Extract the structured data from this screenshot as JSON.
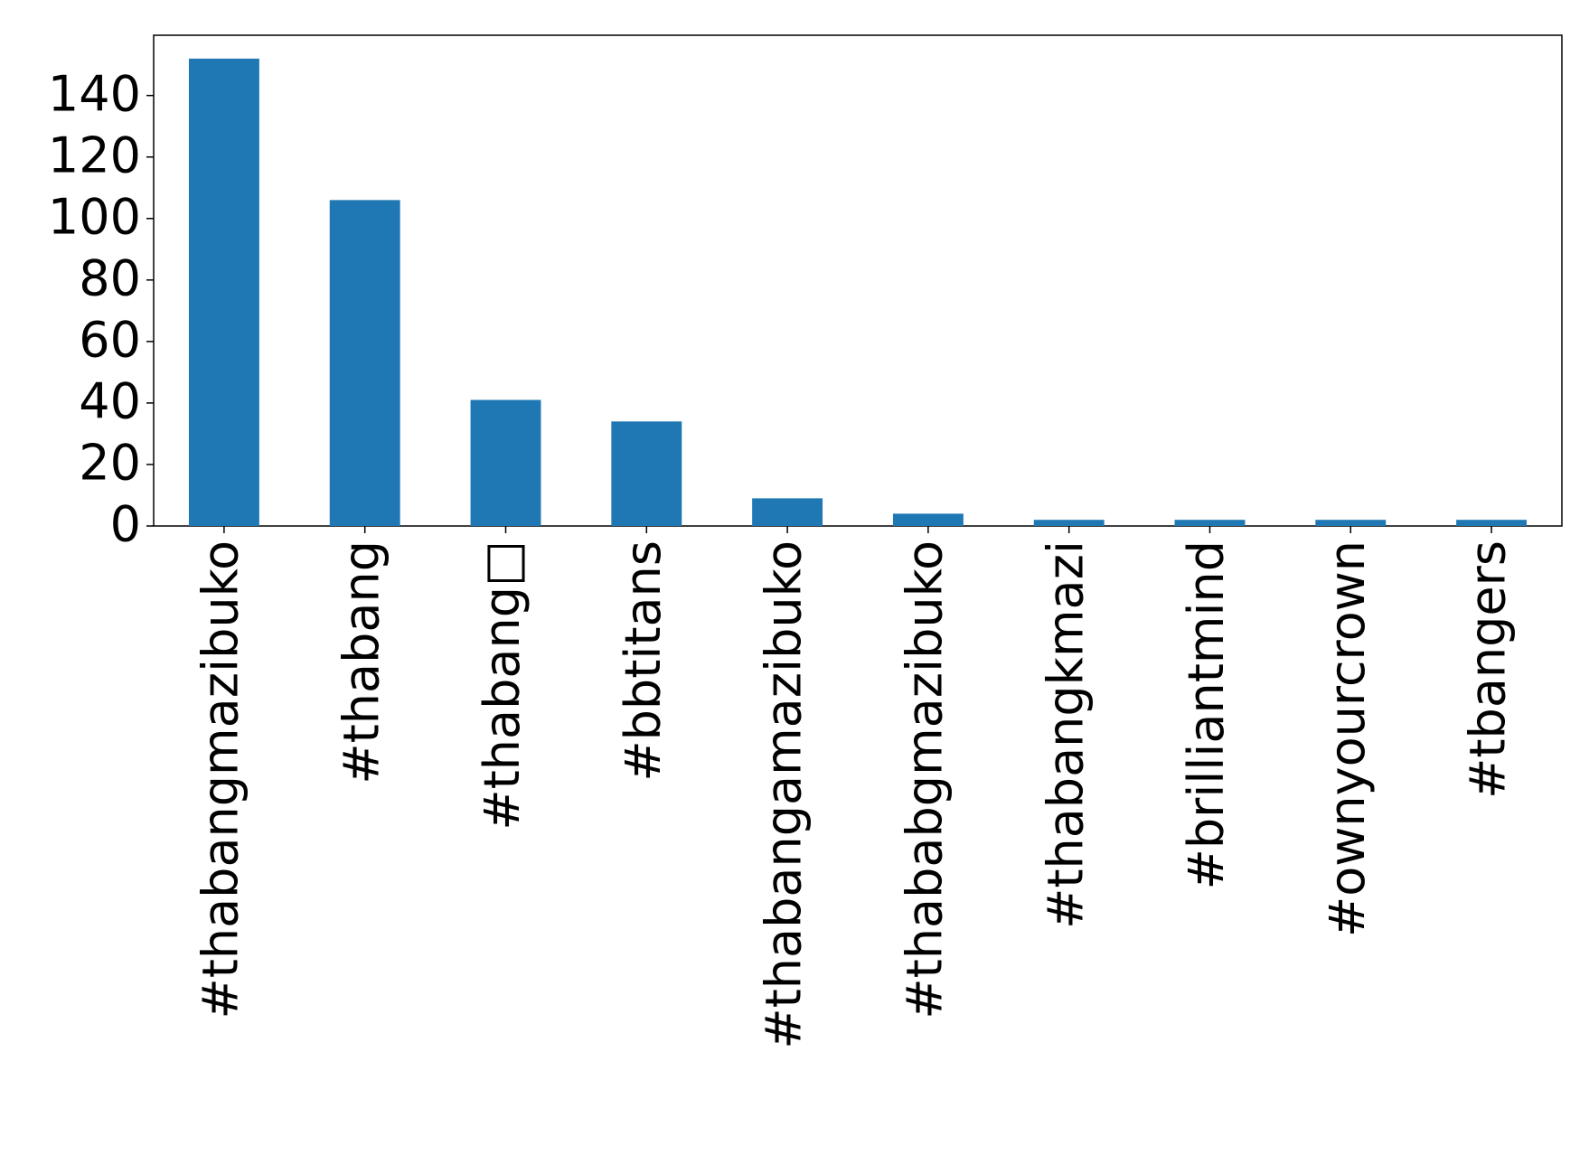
{
  "chart_data": {
    "type": "bar",
    "categories": [
      "#thabangmazibuko",
      "#thabang",
      "#thabang□",
      "#bbtitans",
      "#thabangamazibuko",
      "#thababgmazibuko",
      "#thabangkmazi",
      "#brilliantmind",
      "#ownyourcrown",
      "#tbangers"
    ],
    "values": [
      152,
      106,
      41,
      34,
      9,
      4,
      2,
      2,
      2,
      2
    ],
    "color": "#1f77b4",
    "ylim": [
      0,
      159.6
    ],
    "yticks": [
      0,
      20,
      40,
      60,
      80,
      100,
      120,
      140
    ],
    "grid": false
  }
}
